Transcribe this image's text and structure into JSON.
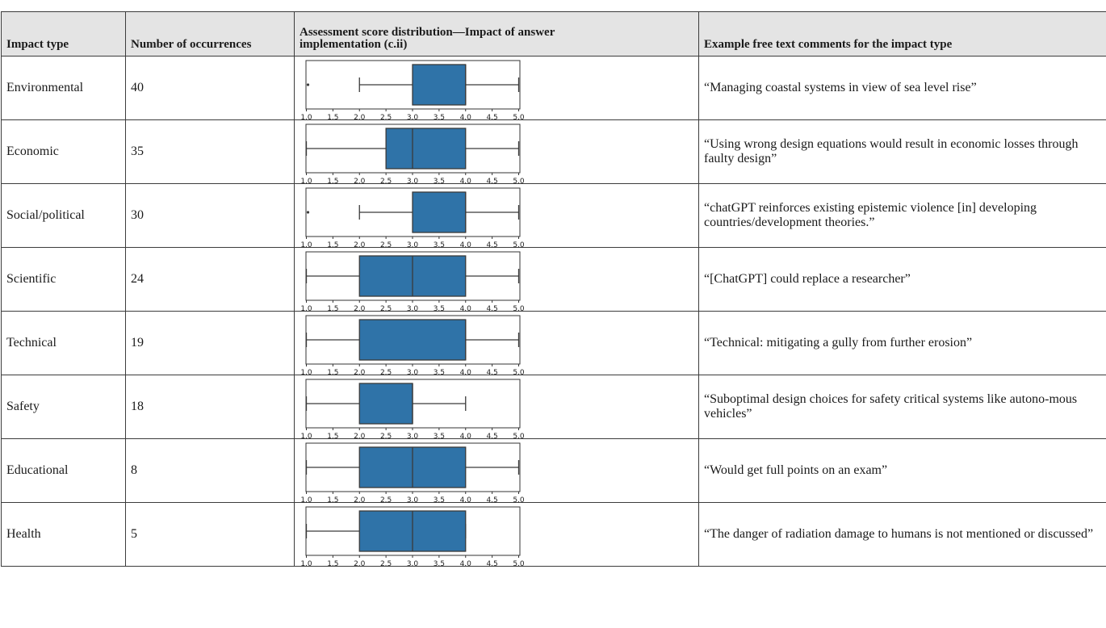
{
  "headers": {
    "impact_type": "Impact type",
    "occurrences": "Number of occurrences",
    "distribution": "Assessment score distribution—Impact of answer implementation (c.ii)",
    "example": "Example free text comments for the impact type"
  },
  "rows": [
    {
      "type": "Environmental",
      "count": "40",
      "example": "“Managing coastal systems in view of sea level rise”"
    },
    {
      "type": "Economic",
      "count": "35",
      "example": "“Using wrong design equations would result in economic losses through faulty design”"
    },
    {
      "type": "Social/political",
      "count": "30",
      "example": "“chatGPT reinforces existing epistemic violence [in] developing countries/development theories.”"
    },
    {
      "type": "Scientific",
      "count": "24",
      "example": "“[ChatGPT] could replace a researcher”"
    },
    {
      "type": "Technical",
      "count": "19",
      "example": "“Technical: mitigating a gully from further erosion”"
    },
    {
      "type": "Safety",
      "count": "18",
      "example": "“Suboptimal design choices for safety critical systems like autono-mous vehicles”"
    },
    {
      "type": "Educational",
      "count": "8",
      "example": "“Would get full points on an exam”"
    },
    {
      "type": "Health",
      "count": "5",
      "example": "“The danger of radiation damage to humans is not mentioned or discussed”"
    }
  ],
  "chart_data": {
    "type": "box",
    "xlim": [
      1.0,
      5.0
    ],
    "ticks": [
      "1.0",
      "1.5",
      "2.0",
      "2.5",
      "3.0",
      "3.5",
      "4.0",
      "4.5",
      "5.0"
    ],
    "box_color": "#2f73a8",
    "series": [
      {
        "q1": 3.0,
        "median": 4.0,
        "q3": 4.0,
        "whisker_low": 2.0,
        "whisker_high": 5.0,
        "outliers": [
          1.0
        ]
      },
      {
        "q1": 2.5,
        "median": 3.0,
        "q3": 4.0,
        "whisker_low": 1.0,
        "whisker_high": 5.0,
        "outliers": []
      },
      {
        "q1": 3.0,
        "median": 4.0,
        "q3": 4.0,
        "whisker_low": 2.0,
        "whisker_high": 5.0,
        "outliers": [
          1.0
        ]
      },
      {
        "q1": 2.0,
        "median": 3.0,
        "q3": 4.0,
        "whisker_low": 1.0,
        "whisker_high": 5.0,
        "outliers": []
      },
      {
        "q1": 2.0,
        "median": 4.0,
        "q3": 4.0,
        "whisker_low": 1.0,
        "whisker_high": 5.0,
        "outliers": []
      },
      {
        "q1": 2.0,
        "median": 3.0,
        "q3": 3.0,
        "whisker_low": 1.0,
        "whisker_high": 4.0,
        "outliers": []
      },
      {
        "q1": 2.0,
        "median": 3.0,
        "q3": 4.0,
        "whisker_low": 1.0,
        "whisker_high": 5.0,
        "outliers": []
      },
      {
        "q1": 2.0,
        "median": 3.0,
        "q3": 4.0,
        "whisker_low": 1.0,
        "whisker_high": 4.0,
        "outliers": []
      }
    ]
  }
}
